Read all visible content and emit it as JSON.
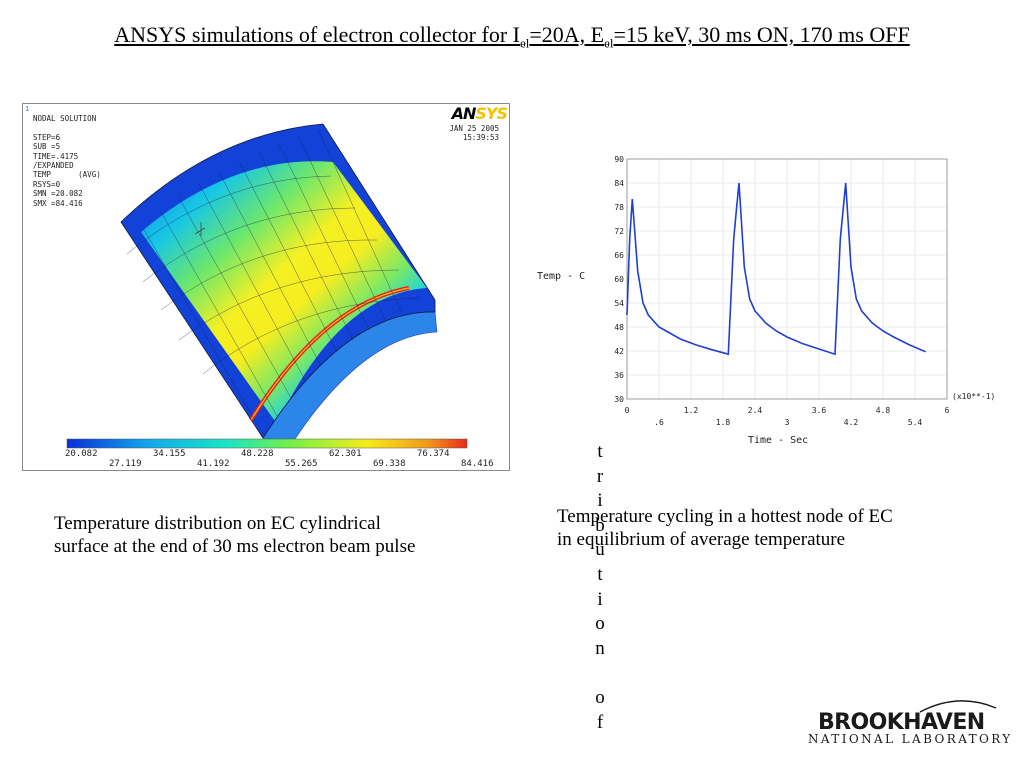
{
  "slide": {
    "title_parts": [
      "ANSYS simulations of electron collector for I",
      "el",
      "=20A, E",
      "el",
      "=15 keV, 30 ms ON, 170 ms OFF"
    ]
  },
  "simulation": {
    "corner_label": "1",
    "info_lines": [
      "NODAL SOLUTION",
      "",
      "STEP=6",
      "SUB =5",
      "TIME=.4175",
      "/EXPANDED",
      "TEMP      (AVG)",
      "RSYS=0",
      "SMN =20.082",
      "SMX =84.416"
    ],
    "date": "JAN 25 2005",
    "time": "15:39:53",
    "logo_left": "AN",
    "logo_right": "SYS",
    "colorbar_upper": [
      "20.082",
      "34.155",
      "48.228",
      "62.301",
      "76.374"
    ],
    "colorbar_lower": [
      "27.119",
      "41.192",
      "55.265",
      "69.338",
      "84.416"
    ],
    "caption_lines": [
      "Temperature distribution on EC cylindrical",
      "surface at the end of 30 ms electron beam pulse"
    ]
  },
  "chart_data": {
    "type": "line",
    "ylabel": "Temp - C",
    "xlabel": "Time - Sec",
    "x_scale_note": "(x10**-1)",
    "xlim": [
      0,
      6
    ],
    "ylim": [
      30,
      90
    ],
    "y_ticks": [
      30,
      36,
      42,
      48,
      54,
      60,
      66,
      72,
      78,
      84,
      90
    ],
    "x_ticks_upper": [
      "0",
      "1.2",
      "2.4",
      "3.6",
      "4.8",
      "6"
    ],
    "x_ticks_lower": [
      ".6",
      "1.8",
      "3",
      "4.2",
      "5.4"
    ],
    "grid": true,
    "series_color": "#1f3fd0",
    "x": [
      0,
      0.05,
      0.1,
      0.2,
      0.3,
      0.4,
      0.6,
      0.8,
      1.0,
      1.3,
      1.6,
      1.9,
      2.0,
      2.05,
      2.1,
      2.2,
      2.3,
      2.4,
      2.6,
      2.8,
      3.0,
      3.3,
      3.6,
      3.9,
      4.0,
      4.05,
      4.1,
      4.2,
      4.3,
      4.4,
      4.6,
      4.8,
      5.0,
      5.3,
      5.6
    ],
    "y": [
      51,
      70,
      80,
      62,
      54,
      51,
      48,
      46.5,
      45,
      43.5,
      42.3,
      41.2,
      70,
      77,
      84,
      63,
      55,
      52,
      49,
      47,
      45.5,
      43.8,
      42.5,
      41.2,
      70,
      77,
      84,
      63,
      55,
      52,
      49,
      47,
      45.5,
      43.5,
      41.8
    ],
    "caption_lines": [
      "Temperature cycling in a hottest node of EC",
      "in equilibrium of average temperature"
    ]
  },
  "overflow_text": "tribution of",
  "logo": {
    "top": "BROOKHAVEN",
    "bottom": "NATIONAL LABORATORY"
  }
}
